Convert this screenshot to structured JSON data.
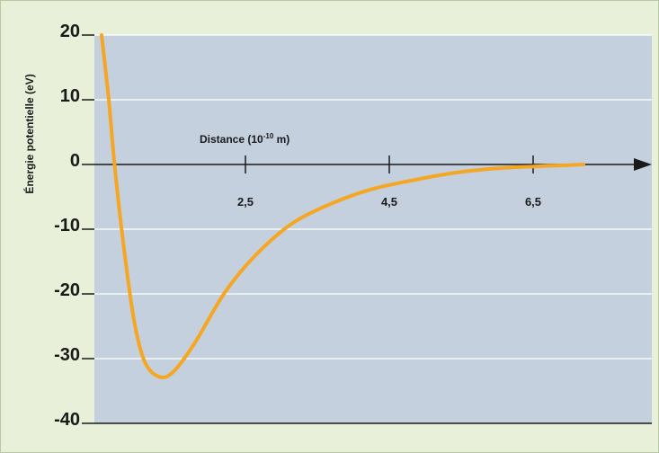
{
  "chart_data": {
    "type": "line",
    "title": "",
    "xlabel": "Distance (10",
    "xlabel_exponent": "-10",
    "xlabel_unit": " m)",
    "ylabel": "Énergie potentielle (eV)",
    "ylim": [
      -40,
      20
    ],
    "xlim": [
      0.5,
      8
    ],
    "y_ticks": [
      "20",
      "10",
      "0",
      "-10",
      "-20",
      "-30",
      "-40"
    ],
    "x_ticks": [
      "2,5",
      "4,5",
      "6,5"
    ],
    "grid": "horizontal",
    "colors": {
      "line": "#f5a623",
      "plot_background": "#c5d0df",
      "frame_background": "#e8f0d9",
      "grid": "#ffffff",
      "axis": "#1a1a1a"
    },
    "series": [
      {
        "values": [
          [
            0.5,
            20
          ],
          [
            0.6,
            10
          ],
          [
            0.68,
            0
          ],
          [
            0.8,
            -12
          ],
          [
            0.95,
            -24
          ],
          [
            1.1,
            -30.5
          ],
          [
            1.3,
            -32.8
          ],
          [
            1.5,
            -32
          ],
          [
            1.8,
            -27.5
          ],
          [
            2.2,
            -20
          ],
          [
            2.6,
            -14.5
          ],
          [
            3.1,
            -9.5
          ],
          [
            3.6,
            -6.5
          ],
          [
            4.2,
            -4
          ],
          [
            4.8,
            -2.5
          ],
          [
            5.4,
            -1.3
          ],
          [
            6.0,
            -0.6
          ],
          [
            6.5,
            -0.3
          ],
          [
            7.0,
            -0.1
          ],
          [
            7.2,
            0
          ]
        ]
      }
    ]
  }
}
